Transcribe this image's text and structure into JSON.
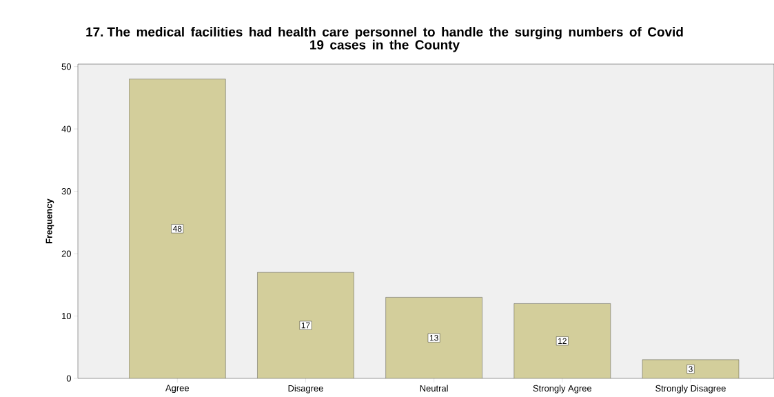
{
  "chart_data": {
    "type": "bar",
    "title": "17. The medical facilities had health care personnel to handle the surging numbers of Covid 19 cases in the County",
    "ylabel": "Frequency",
    "categories": [
      "Agree",
      "Disagree",
      "Neutral",
      "Strongly Agree",
      "Strongly Disagree"
    ],
    "values": [
      48,
      17,
      13,
      12,
      3
    ],
    "color": "#d3ce9b",
    "ylim": [
      0,
      50.4
    ],
    "yticks": [
      0,
      10,
      20,
      30,
      40,
      50
    ],
    "data_labels": true
  }
}
